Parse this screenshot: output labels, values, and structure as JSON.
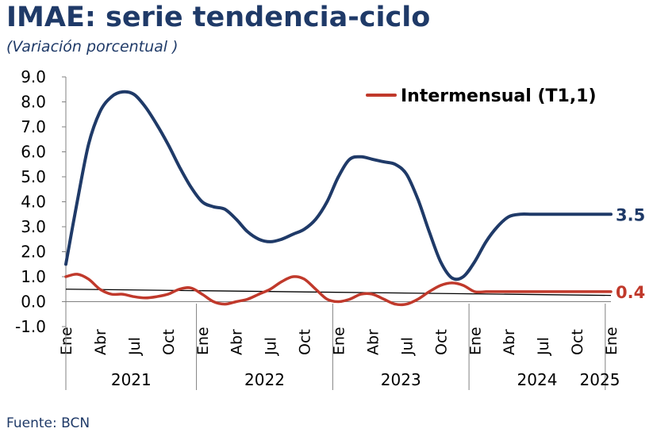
{
  "title": "IMAE: serie tendencia-ciclo",
  "subtitle": "(Variación porcentual )",
  "source": "Fuente: BCN",
  "chart_data": {
    "type": "line",
    "ylim": [
      -1.0,
      9.0
    ],
    "yticks": [
      "9.0",
      "8.0",
      "7.0",
      "6.0",
      "5.0",
      "4.0",
      "3.0",
      "2.0",
      "1.0",
      "0.0",
      "-1.0"
    ],
    "x_labels": [
      {
        "label": "Ene",
        "index": 0
      },
      {
        "label": "Abr",
        "index": 3
      },
      {
        "label": "Jul",
        "index": 6
      },
      {
        "label": "Oct",
        "index": 9
      },
      {
        "label": "Ene",
        "index": 12
      },
      {
        "label": "Abr",
        "index": 15
      },
      {
        "label": "Jul",
        "index": 18
      },
      {
        "label": "Oct",
        "index": 21
      },
      {
        "label": "Ene",
        "index": 24
      },
      {
        "label": "Abr",
        "index": 27
      },
      {
        "label": "Jul",
        "index": 30
      },
      {
        "label": "Oct",
        "index": 33
      },
      {
        "label": "Ene",
        "index": 36
      },
      {
        "label": "Abr",
        "index": 39
      },
      {
        "label": "Jul",
        "index": 42
      },
      {
        "label": "Oct",
        "index": 45
      },
      {
        "label": "Ene",
        "index": 48
      }
    ],
    "years": [
      {
        "label": "2021",
        "start": 0,
        "end": 12
      },
      {
        "label": "2022",
        "start": 12,
        "end": 24
      },
      {
        "label": "2023",
        "start": 24,
        "end": 36
      },
      {
        "label": "2024",
        "start": 36,
        "end": 48
      },
      {
        "label": "2025",
        "start": 48,
        "end": 49
      }
    ],
    "n_points": 49,
    "series": [
      {
        "name": "",
        "color": "#1f3a68",
        "values": [
          1.5,
          4.0,
          6.3,
          7.6,
          8.2,
          8.4,
          8.3,
          7.8,
          7.1,
          6.3,
          5.4,
          4.6,
          4.0,
          3.8,
          3.7,
          3.3,
          2.8,
          2.5,
          2.4,
          2.5,
          2.7,
          2.9,
          3.3,
          4.0,
          5.0,
          5.7,
          5.8,
          5.7,
          5.6,
          5.5,
          5.1,
          4.1,
          2.8,
          1.6,
          0.95,
          1.0,
          1.6,
          2.4,
          3.0,
          3.4,
          3.5,
          3.5,
          3.5,
          3.5,
          3.5,
          3.5,
          3.5,
          3.5,
          3.5
        ],
        "end_label": "3.5"
      },
      {
        "name": "Intermensual (T1,1)",
        "color": "#c0392b",
        "values": [
          1.0,
          1.1,
          0.9,
          0.5,
          0.3,
          0.3,
          0.2,
          0.15,
          0.2,
          0.3,
          0.5,
          0.55,
          0.3,
          0.0,
          -0.1,
          0.0,
          0.1,
          0.3,
          0.5,
          0.8,
          1.0,
          0.9,
          0.5,
          0.1,
          0.0,
          0.1,
          0.3,
          0.3,
          0.1,
          -0.1,
          -0.1,
          0.1,
          0.4,
          0.65,
          0.75,
          0.65,
          0.4,
          0.4,
          0.4,
          0.4,
          0.4,
          0.4,
          0.4,
          0.4,
          0.4,
          0.4,
          0.4,
          0.4,
          0.4
        ],
        "end_label": "0.4"
      }
    ],
    "trend_line": {
      "color": "#000000",
      "start_value": 0.5,
      "end_value": 0.25
    },
    "legend_position": "top-right",
    "grid": false
  }
}
